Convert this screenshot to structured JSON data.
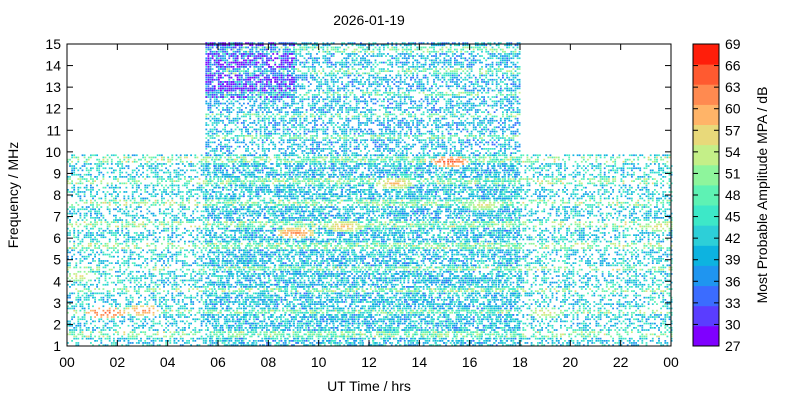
{
  "chart_data": {
    "type": "heatmap",
    "title": "2026-01-19",
    "xlabel": "UT Time / hrs",
    "ylabel": "Frequency / MHz",
    "colorbar_label": "Most Probable Amplitude MPA / dB",
    "xlim": [
      0,
      24
    ],
    "ylim": [
      1,
      15
    ],
    "x_ticks": [
      "00",
      "02",
      "04",
      "06",
      "08",
      "10",
      "12",
      "14",
      "16",
      "18",
      "20",
      "22",
      "00"
    ],
    "y_ticks": [
      "1",
      "2",
      "3",
      "4",
      "5",
      "6",
      "7",
      "8",
      "9",
      "10",
      "11",
      "12",
      "13",
      "14",
      "15"
    ],
    "colorbar_ticks": [
      "27",
      "30",
      "33",
      "36",
      "39",
      "42",
      "45",
      "48",
      "51",
      "54",
      "57",
      "60",
      "63",
      "66",
      "69"
    ],
    "colorbar_range": [
      27,
      69
    ],
    "colorscale": [
      "#7f00ff",
      "#5a3dff",
      "#3b6cff",
      "#1f95f0",
      "#0db3e0",
      "#2dcfd8",
      "#3de8c8",
      "#5ef2b4",
      "#8ef59c",
      "#c4ef88",
      "#e8d97a",
      "#ffb468",
      "#ff8a50",
      "#ff5a30",
      "#ff1e0a"
    ],
    "bands": [
      {
        "t_start": 0,
        "t_end": 24,
        "f_low": 1,
        "f_high": 9.8,
        "mpa_typical": 42
      },
      {
        "t_start": 5.5,
        "t_end": 18,
        "f_low": 1,
        "f_high": 15,
        "mpa_typical": 40
      },
      {
        "t_start": 5.5,
        "t_end": 9,
        "f_low": 12.5,
        "f_high": 15,
        "mpa_typical": 29
      }
    ],
    "hot_spots": [
      {
        "t": 1.5,
        "f": 2.5,
        "mpa": 66
      },
      {
        "t": 3.0,
        "f": 2.6,
        "mpa": 63
      },
      {
        "t": 0.5,
        "f": 4.2,
        "mpa": 57
      },
      {
        "t": 9.0,
        "f": 6.2,
        "mpa": 63
      },
      {
        "t": 11.0,
        "f": 6.5,
        "mpa": 60
      },
      {
        "t": 13.0,
        "f": 8.5,
        "mpa": 60
      },
      {
        "t": 15.2,
        "f": 9.5,
        "mpa": 66
      },
      {
        "t": 16.5,
        "f": 7.5,
        "mpa": 57
      },
      {
        "t": 19.0,
        "f": 2.5,
        "mpa": 57
      },
      {
        "t": 23.5,
        "f": 6.5,
        "mpa": 57
      }
    ]
  }
}
